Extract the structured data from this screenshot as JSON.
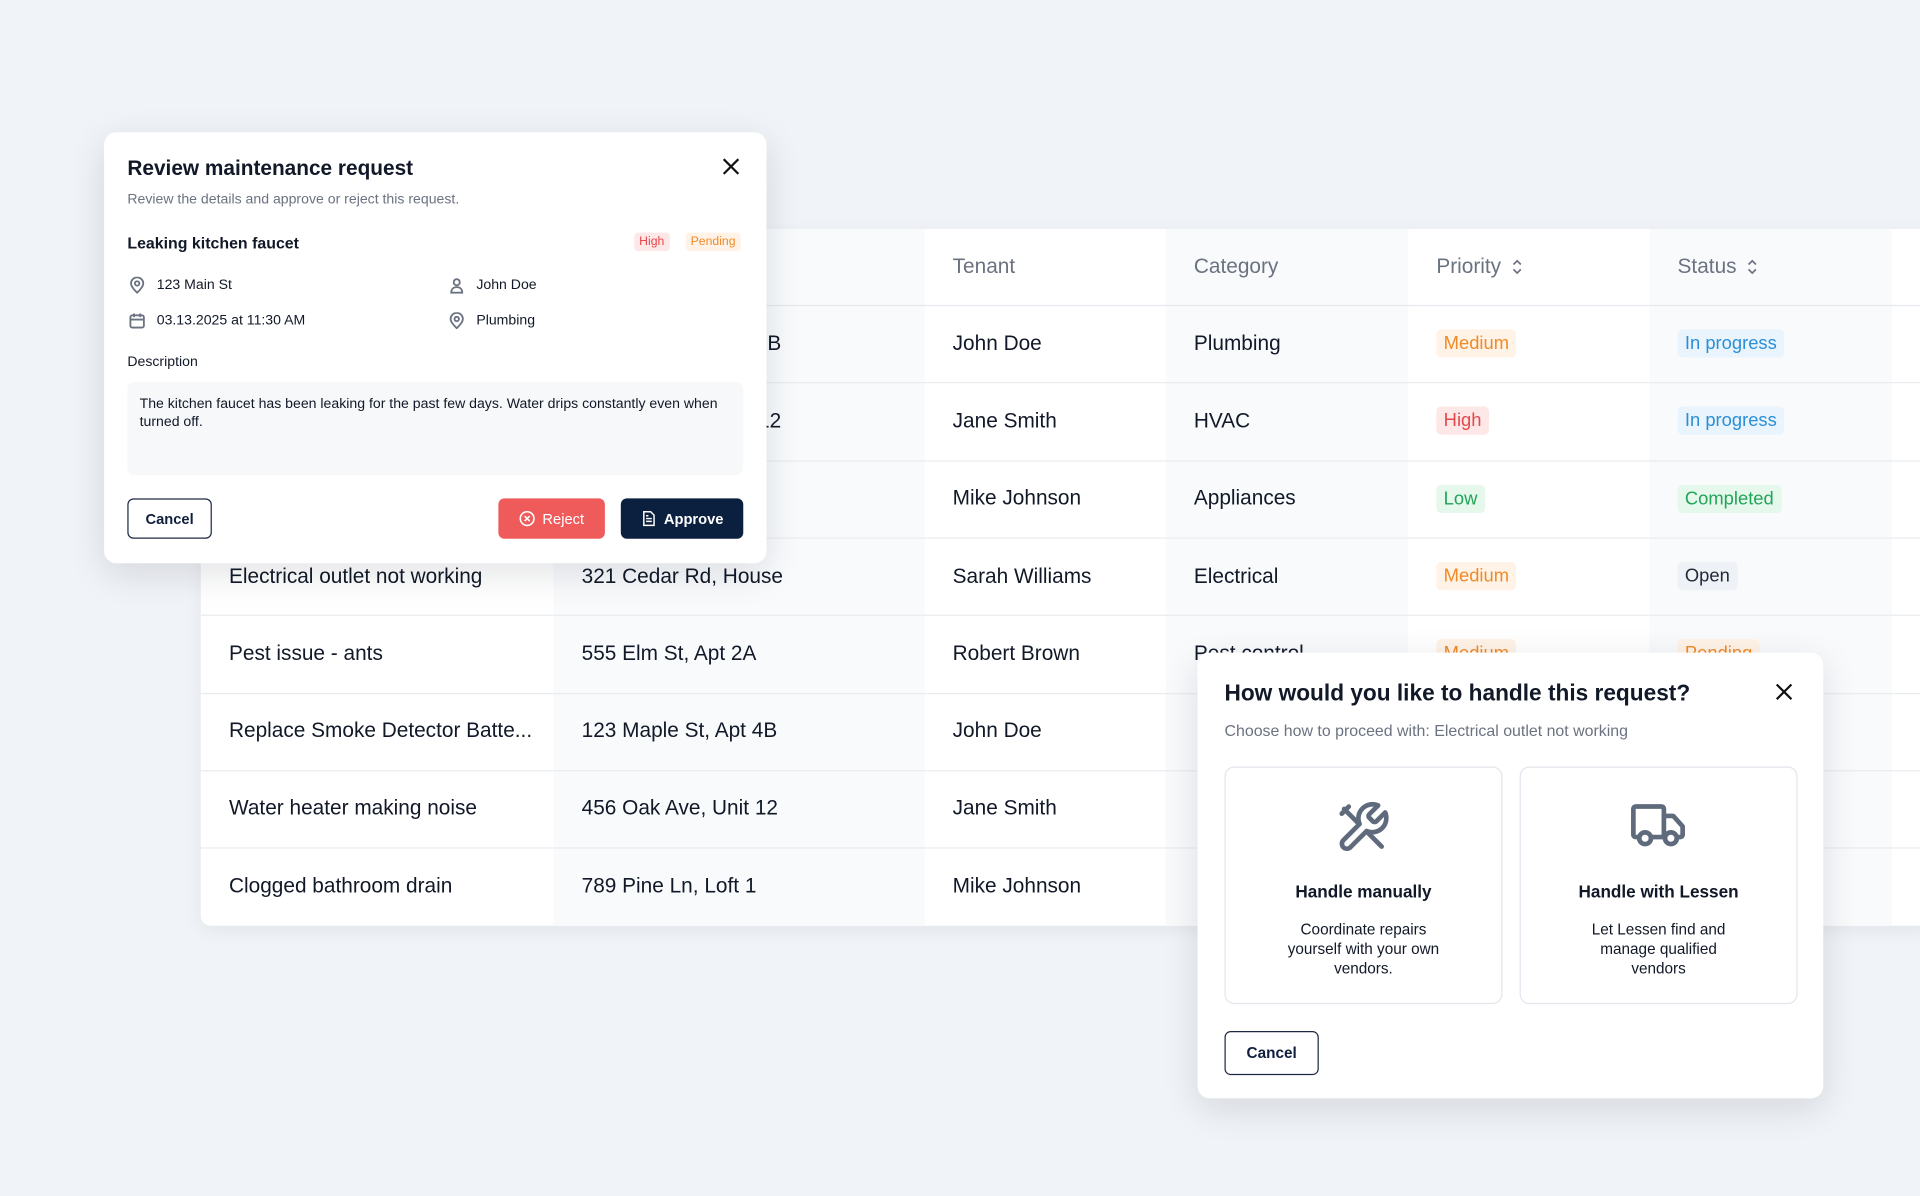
{
  "table": {
    "headers": [
      null,
      null,
      "Tenant",
      "Category",
      "Priority",
      "Status"
    ],
    "rows": [
      [
        null,
        "B",
        "John Doe",
        "Plumbing",
        {
          "text": "Medium",
          "color": "#f08a24",
          "bg": "#fff3e8"
        },
        {
          "text": "In progress",
          "color": "#2a8fd6",
          "bg": "#eaf4fc"
        }
      ],
      [
        null,
        "12",
        "Jane Smith",
        "HVAC",
        {
          "text": "High",
          "color": "#e5484d",
          "bg": "#fde7e7"
        },
        {
          "text": "In progress",
          "color": "#2a8fd6",
          "bg": "#eaf4fc"
        }
      ],
      [
        null,
        null,
        "Mike Johnson",
        "Appliances",
        {
          "text": "Low",
          "color": "#22a559",
          "bg": "#e6f7ec"
        },
        {
          "text": "Completed",
          "color": "#22a559",
          "bg": "#e6f7ec"
        }
      ],
      [
        "Electrical outlet not working",
        "321 Cedar Rd, House",
        "Sarah Williams",
        "Electrical",
        {
          "text": "Medium",
          "color": "#f08a24",
          "bg": "#fff3e8"
        },
        {
          "text": "Open",
          "color": "#1f2937",
          "bg": "#eef1f5"
        }
      ],
      [
        "Pest issue - ants",
        "555 Elm St, Apt 2A",
        "Robert Brown",
        "Pest control",
        {
          "text": "Medium",
          "color": "#f08a24",
          "bg": "#fff3e8"
        },
        {
          "text": "Pending",
          "color": "#f08a24",
          "bg": "#fff3e8"
        }
      ],
      [
        "Replace Smoke Detector Batte...",
        "123 Maple St, Apt 4B",
        "John Doe",
        null,
        null,
        null
      ],
      [
        "Water heater making noise",
        "456 Oak Ave, Unit 12",
        "Jane Smith",
        null,
        null,
        null
      ],
      [
        "Clogged bathroom drain",
        "789 Pine Ln, Loft 1",
        "Mike Johnson",
        null,
        null,
        null
      ]
    ]
  },
  "review_modal": {
    "title": "Review maintenance request",
    "subtitle": "Review the details and approve or reject this request.",
    "request": "Leaking kitchen faucet",
    "priority": {
      "text": "High",
      "color": "#e5484d",
      "bg": "#fde7e7"
    },
    "status": {
      "text": "Pending",
      "color": "#f08a24",
      "bg": "#fff3e8"
    },
    "address": "123 Main St",
    "tenant": "John Doe",
    "date": "03.13.2025 at 11:30 AM",
    "category": "Plumbing",
    "description_label": "Description",
    "description": "The kitchen faucet has been leaking for the past few days. Water drips constantly even when turned off.",
    "cancel": "Cancel",
    "reject": "Reject",
    "approve": "Approve"
  },
  "handle_modal": {
    "title": "How would you like to handle this request?",
    "subtitle": "Choose how to proceed with: Electrical outlet not working",
    "options": [
      {
        "title": "Handle manually",
        "description": "Coordinate repairs yourself with your own vendors."
      },
      {
        "title": "Handle with Lessen",
        "description": "Let Lessen find and manage qualified vendors"
      }
    ],
    "cancel": "Cancel"
  }
}
